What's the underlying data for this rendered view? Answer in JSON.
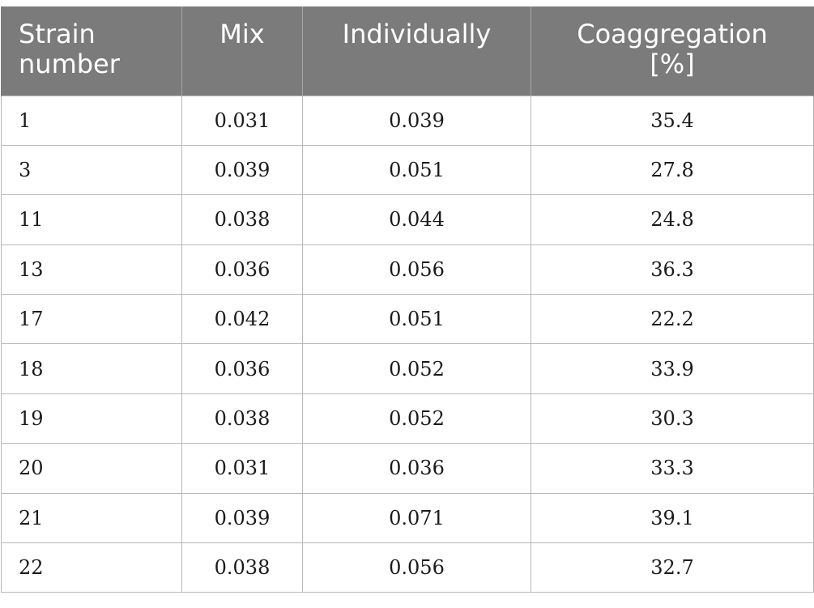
{
  "table": {
    "headers": [
      {
        "label_line1": "Strain",
        "label_line2": "number"
      },
      {
        "label_line1": "Mix",
        "label_line2": ""
      },
      {
        "label_line1": "Individually",
        "label_line2": ""
      },
      {
        "label_line1": "Coaggregation",
        "label_line2": "[%]"
      }
    ],
    "rows": [
      [
        "1",
        "0.031",
        "0.039",
        "35.4"
      ],
      [
        "3",
        "0.039",
        "0.051",
        "27.8"
      ],
      [
        "11",
        "0.038",
        "0.044",
        "24.8"
      ],
      [
        "13",
        "0.036",
        "0.056",
        "36.3"
      ],
      [
        "17",
        "0.042",
        "0.051",
        "22.2"
      ],
      [
        "18",
        "0.036",
        "0.052",
        "33.9"
      ],
      [
        "19",
        "0.038",
        "0.052",
        "30.3"
      ],
      [
        "20",
        "0.031",
        "0.036",
        "33.3"
      ],
      [
        "21",
        "0.039",
        "0.071",
        "39.1"
      ],
      [
        "22",
        "0.038",
        "0.056",
        "32.7"
      ]
    ]
  },
  "colors": {
    "header_background": "#7a7b7a",
    "header_text": "#ffffff",
    "grid_lines": "#b8b8b8"
  }
}
